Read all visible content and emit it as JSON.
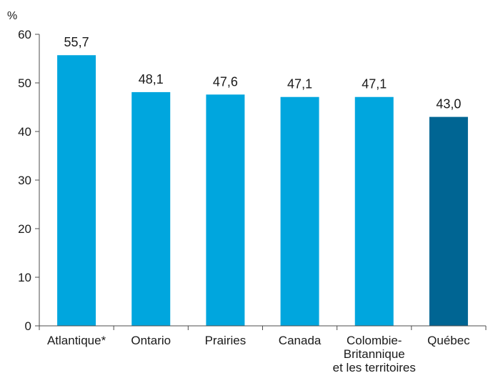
{
  "chart_data": {
    "type": "bar",
    "title": "",
    "xlabel": "",
    "ylabel": "%",
    "ylim": [
      0,
      60
    ],
    "yticks": [
      0,
      10,
      20,
      30,
      40,
      50,
      60
    ],
    "grid": false,
    "categories": [
      "Atlantique*",
      "Ontario",
      "Prairies",
      "Canada",
      "Colombie-Britannique et les territoires",
      "Québec"
    ],
    "category_lines": [
      [
        "Atlantique*"
      ],
      [
        "Ontario"
      ],
      [
        "Prairies"
      ],
      [
        "Canada"
      ],
      [
        "Colombie-",
        "Britannique",
        "et les territoires"
      ],
      [
        "Québec"
      ]
    ],
    "values": [
      55.7,
      48.1,
      47.6,
      47.1,
      47.1,
      43.0
    ],
    "value_labels": [
      "55,7",
      "48,1",
      "47,6",
      "47,1",
      "47,1",
      "43,0"
    ],
    "colors": [
      "#00a6de",
      "#00a6de",
      "#00a6de",
      "#00a6de",
      "#00a6de",
      "#006593"
    ],
    "axis_color": "#4d4d4d"
  }
}
